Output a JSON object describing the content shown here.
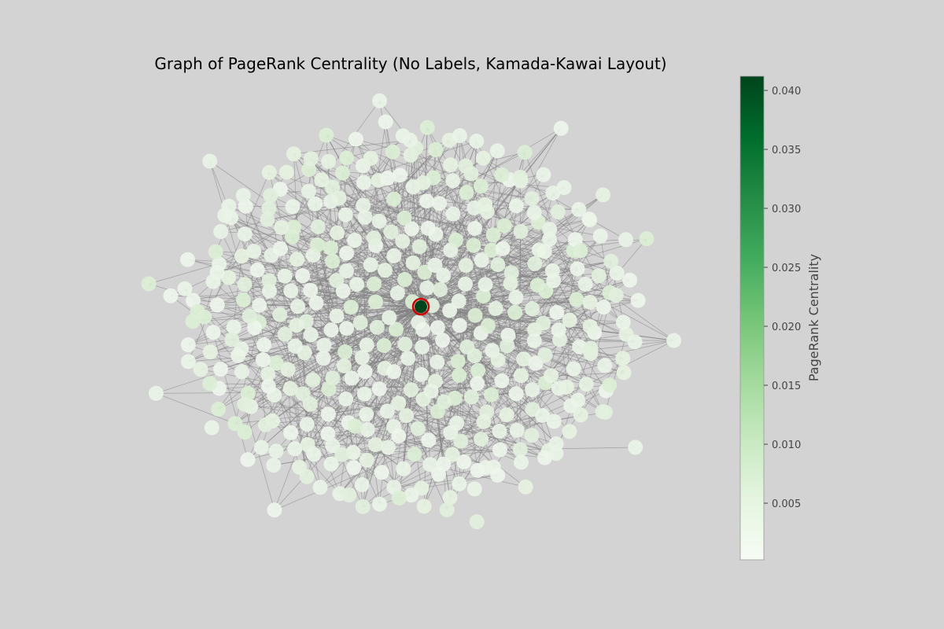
{
  "chart_data": {
    "type": "network-graph",
    "title": "Graph of PageRank Centrality (No Labels, Kamada-Kawai Layout)",
    "layout": "Kamada-Kawai",
    "node_labels": false,
    "directed": true,
    "node_count": 420,
    "edge_color": "#808080",
    "node_color_low": "#f7fcf5",
    "node_color_high": "#00441b",
    "highlight_node_ring_color": "#cc0000",
    "highlight_node_pagerank": 0.041,
    "colorbar": {
      "label": "PageRank Centrality",
      "colormap": "Greens",
      "vmin": 0.0002,
      "vmax": 0.0412,
      "ticks": [
        0.005,
        0.01,
        0.015,
        0.02,
        0.025,
        0.03,
        0.035,
        0.04
      ],
      "tick_labels": [
        "0.005",
        "0.010",
        "0.015",
        "0.020",
        "0.025",
        "0.030",
        "0.035",
        "0.040"
      ],
      "placement": "right"
    }
  }
}
